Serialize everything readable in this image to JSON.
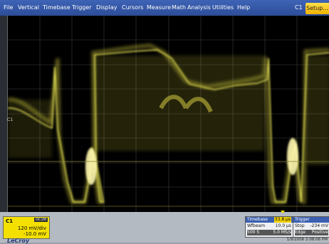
{
  "menu": [
    "File",
    "Vertical",
    "Timebase",
    "Trigger",
    "Display",
    "Cursors",
    "Measure",
    "Math",
    "Analysis",
    "Utilities",
    "Help"
  ],
  "channel_indicator": "C1",
  "setup_button": "Setup...",
  "trace_marker": "C1",
  "channel": {
    "label": "C1",
    "badge": "DC1M",
    "scale": "120 mV/div",
    "offset": "-10.0 mV"
  },
  "timebase": {
    "title": "Timebase",
    "value": "33.8 µs",
    "rows": [
      [
        "Wfbeam",
        "10.0 µs"
      ],
      [
        "500 S",
        "5.0 MS/s"
      ]
    ]
  },
  "trigger": {
    "title": "Trigger",
    "rows": [
      [
        "Stop",
        "-234 mV"
      ],
      [
        "Edge",
        "Positive"
      ]
    ]
  },
  "brand": "LeCroy",
  "datetime": "1/9/2006 2:08:06 PM",
  "colors": {
    "trace": "#f6f35a",
    "menu": "#2c4c98",
    "setup": "#f0b000"
  }
}
